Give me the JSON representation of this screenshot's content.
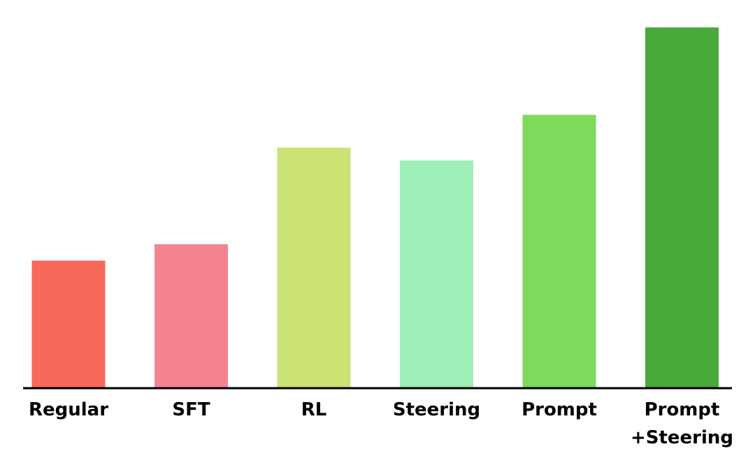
{
  "chart_data": {
    "type": "bar",
    "categories": [
      "Regular",
      "SFT",
      "RL",
      "Steering",
      "Prompt",
      "Prompt\n+Steering"
    ],
    "values": [
      0.35,
      0.395,
      0.66,
      0.625,
      0.75,
      0.99
    ],
    "colors": [
      "#f7695a",
      "#f5828f",
      "#cbe274",
      "#9deeb7",
      "#7fd95b",
      "#48aa39"
    ],
    "ylim": [
      0,
      1
    ],
    "title": "",
    "xlabel": "",
    "ylabel": "",
    "grid": false,
    "y_axis_visible": false,
    "baseline_color": "#000000"
  }
}
